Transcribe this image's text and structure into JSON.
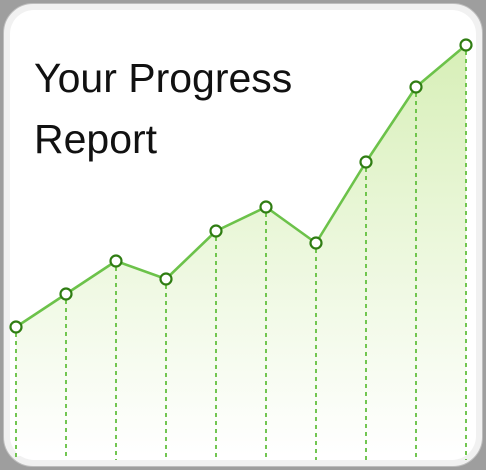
{
  "title": "Your Progress\nReport",
  "colors": {
    "line": "#6cc24a",
    "marker_edge": "#2f7d12",
    "marker_fill": "#ffffff",
    "fill_top": "#d7efb7",
    "fill_bottom": "#ffffff",
    "guide": "#63c03f"
  },
  "chart_data": {
    "type": "area",
    "title": "Your Progress\nReport",
    "xlabel": "",
    "ylabel": "",
    "x": [
      1,
      2,
      3,
      4,
      5,
      6,
      7,
      8,
      9,
      10
    ],
    "series": [
      {
        "values": [
          4.3,
          5.4,
          6.5,
          5.9,
          7.5,
          8.3,
          7.1,
          9.8,
          12.3,
          13.7
        ]
      }
    ],
    "xlim": [
      1,
      10
    ],
    "ylim": [
      0,
      15
    ],
    "grid": false,
    "legend": "none",
    "markers": "hollow-circle",
    "drop_lines": "dashed"
  }
}
